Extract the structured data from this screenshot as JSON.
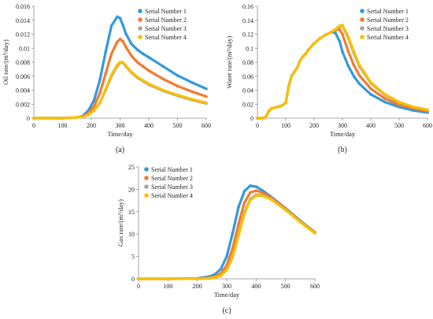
{
  "colors": {
    "Serial Number 1": "#3399dd",
    "Serial Number 2": "#f47a2e",
    "Serial Number 3": "#a5a5a5",
    "Serial Number 4": "#f8c000"
  },
  "chart_data": [
    {
      "id": "a",
      "panel_label": "(a)",
      "type": "scatter",
      "xlabel": "Time/day",
      "ylabel": "Oil rate/(m³/day)",
      "xlim": [
        0,
        600
      ],
      "ylim": [
        0,
        0.016
      ],
      "xticks": [
        0,
        100,
        200,
        300,
        400,
        500,
        600
      ],
      "yticks": [
        0,
        0.002,
        0.004,
        0.006,
        0.008,
        0.01,
        0.012,
        0.014,
        0.016
      ],
      "ytick_labels": [
        "0",
        "0.002",
        "0.004",
        "0.006",
        "0.008",
        "0.01",
        "0.012",
        "0.014",
        "0.016"
      ],
      "legend_position": "top-right",
      "x": [
        0,
        50,
        100,
        150,
        170,
        190,
        210,
        230,
        250,
        270,
        290,
        300,
        310,
        320,
        340,
        360,
        380,
        400,
        450,
        500,
        550,
        600
      ],
      "series": [
        {
          "name": "Serial Number 1",
          "values": [
            0,
            0,
            0,
            0.0001,
            0.0003,
            0.0011,
            0.0026,
            0.0055,
            0.0095,
            0.0132,
            0.0145,
            0.0143,
            0.0133,
            0.0121,
            0.0106,
            0.0098,
            0.0092,
            0.0087,
            0.0074,
            0.0061,
            0.0051,
            0.0042
          ]
        },
        {
          "name": "Serial Number 2",
          "values": [
            0,
            0,
            0,
            0.0001,
            0.0002,
            0.0007,
            0.0017,
            0.0036,
            0.0064,
            0.0092,
            0.0109,
            0.0113,
            0.011,
            0.0102,
            0.0089,
            0.008,
            0.0074,
            0.0068,
            0.0056,
            0.0046,
            0.0038,
            0.0031
          ]
        },
        {
          "name": "Serial Number 3",
          "values": [
            0,
            0,
            0,
            0.0001,
            0.0002,
            0.0005,
            0.0011,
            0.0022,
            0.004,
            0.006,
            0.0074,
            0.0079,
            0.0079,
            0.0074,
            0.0065,
            0.0058,
            0.0053,
            0.0048,
            0.0039,
            0.0032,
            0.0026,
            0.0021
          ]
        },
        {
          "name": "Serial Number 4",
          "values": [
            0,
            0,
            0,
            0.0001,
            0.0002,
            0.0005,
            0.0011,
            0.0022,
            0.0041,
            0.0062,
            0.0076,
            0.008,
            0.008,
            0.0075,
            0.0066,
            0.0059,
            0.0054,
            0.0049,
            0.004,
            0.0033,
            0.0027,
            0.0022
          ]
        }
      ]
    },
    {
      "id": "b",
      "panel_label": "(b)",
      "type": "scatter",
      "xlabel": "Time/day",
      "ylabel": "Water rate/(m³/day)",
      "xlim": [
        0,
        600
      ],
      "ylim": [
        0,
        0.16
      ],
      "xticks": [
        0,
        100,
        200,
        300,
        400,
        500,
        600
      ],
      "yticks": [
        0,
        0.02,
        0.04,
        0.06,
        0.08,
        0.1,
        0.12,
        0.14,
        0.16
      ],
      "ytick_labels": [
        "0",
        "0.02",
        "0.04",
        "0.06",
        "0.08",
        "0.1",
        "0.12",
        "0.14",
        "0.16"
      ],
      "legend_position": "top-right",
      "x": [
        0,
        20,
        30,
        40,
        50,
        60,
        70,
        80,
        90,
        100,
        110,
        120,
        130,
        140,
        150,
        160,
        170,
        180,
        200,
        220,
        240,
        260,
        275,
        290,
        300,
        320,
        340,
        360,
        400,
        450,
        500,
        550,
        600
      ],
      "series": [
        {
          "name": "Serial Number 1",
          "values": [
            0,
            0,
            0.002,
            0.01,
            0.014,
            0.015,
            0.016,
            0.017,
            0.019,
            0.022,
            0.045,
            0.06,
            0.066,
            0.072,
            0.082,
            0.088,
            0.092,
            0.098,
            0.107,
            0.114,
            0.119,
            0.123,
            0.122,
            0.11,
            0.095,
            0.075,
            0.06,
            0.049,
            0.034,
            0.023,
            0.016,
            0.011,
            0.008
          ]
        },
        {
          "name": "Serial Number 2",
          "values": [
            0,
            0,
            0.002,
            0.01,
            0.014,
            0.015,
            0.016,
            0.017,
            0.019,
            0.022,
            0.045,
            0.06,
            0.066,
            0.072,
            0.082,
            0.088,
            0.092,
            0.098,
            0.107,
            0.114,
            0.119,
            0.123,
            0.126,
            0.127,
            0.12,
            0.096,
            0.076,
            0.061,
            0.042,
            0.028,
            0.019,
            0.014,
            0.01
          ]
        },
        {
          "name": "Serial Number 3",
          "values": [
            0,
            0,
            0.002,
            0.01,
            0.014,
            0.015,
            0.016,
            0.017,
            0.019,
            0.022,
            0.045,
            0.06,
            0.066,
            0.072,
            0.082,
            0.088,
            0.092,
            0.098,
            0.107,
            0.114,
            0.119,
            0.123,
            0.127,
            0.131,
            0.132,
            0.115,
            0.093,
            0.074,
            0.05,
            0.033,
            0.022,
            0.016,
            0.012
          ]
        },
        {
          "name": "Serial Number 4",
          "values": [
            0,
            0,
            0.002,
            0.01,
            0.014,
            0.015,
            0.016,
            0.017,
            0.019,
            0.022,
            0.045,
            0.06,
            0.066,
            0.072,
            0.082,
            0.088,
            0.092,
            0.098,
            0.107,
            0.114,
            0.119,
            0.123,
            0.127,
            0.132,
            0.133,
            0.117,
            0.095,
            0.076,
            0.051,
            0.034,
            0.023,
            0.016,
            0.012
          ]
        }
      ]
    },
    {
      "id": "c",
      "panel_label": "(c)",
      "type": "scatter",
      "xlabel": "Time/day",
      "ylabel": "Gas rate/(m³/day)",
      "xlim": [
        0,
        600
      ],
      "ylim": [
        0,
        25
      ],
      "xticks": [
        0,
        100,
        200,
        300,
        400,
        500,
        600
      ],
      "yticks": [
        0,
        5,
        10,
        15,
        20,
        25
      ],
      "ytick_labels": [
        "0",
        "5",
        "10",
        "15",
        "20",
        "25"
      ],
      "legend_position": "top-left",
      "x": [
        0,
        100,
        200,
        240,
        260,
        280,
        300,
        320,
        340,
        360,
        380,
        400,
        420,
        450,
        500,
        550,
        600
      ],
      "series": [
        {
          "name": "Serial Number 1",
          "values": [
            0,
            0,
            0.1,
            0.5,
            1.0,
            2.2,
            5.0,
            10.2,
            16.0,
            19.6,
            20.8,
            20.6,
            19.8,
            18.4,
            15.8,
            13.0,
            10.4
          ]
        },
        {
          "name": "Serial Number 2",
          "values": [
            0,
            0,
            0.05,
            0.2,
            0.5,
            1.2,
            3.0,
            6.8,
            12.2,
            17.0,
            19.3,
            19.7,
            19.3,
            18.2,
            15.7,
            12.9,
            10.4
          ]
        },
        {
          "name": "Serial Number 3",
          "values": [
            0,
            0,
            0.03,
            0.1,
            0.3,
            0.7,
            2.0,
            4.8,
            9.8,
            14.8,
            17.8,
            18.8,
            18.7,
            17.9,
            15.5,
            12.8,
            10.3
          ]
        },
        {
          "name": "Serial Number 4",
          "values": [
            0,
            0,
            0.03,
            0.1,
            0.3,
            0.7,
            2.0,
            4.8,
            9.6,
            14.5,
            17.6,
            18.6,
            18.6,
            17.8,
            15.4,
            12.7,
            10.2
          ]
        }
      ]
    }
  ]
}
